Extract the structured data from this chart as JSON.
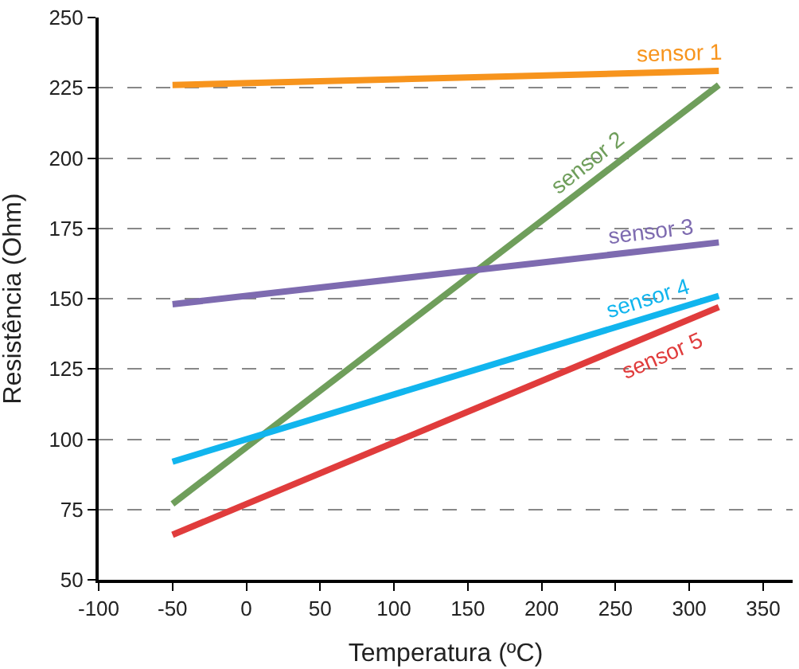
{
  "chart_data": {
    "type": "line",
    "xlabel": "Temperatura (ºC)",
    "ylabel": "Resistência (Ohm)",
    "x": [
      -50,
      320
    ],
    "series": [
      {
        "name": "sensor 1",
        "color": "#f7941d",
        "values": [
          226,
          231
        ]
      },
      {
        "name": "sensor 2",
        "color": "#6f9e5b",
        "values": [
          77,
          226
        ]
      },
      {
        "name": "sensor 3",
        "color": "#7e6bb0",
        "values": [
          148,
          170
        ]
      },
      {
        "name": "sensor 4",
        "color": "#11b5ee",
        "values": [
          92,
          151
        ]
      },
      {
        "name": "sensor 5",
        "color": "#e03c3c",
        "values": [
          66,
          147
        ]
      }
    ],
    "xlim": [
      -100,
      370
    ],
    "xticks": [
      -100,
      -50,
      0,
      50,
      100,
      150,
      200,
      250,
      300,
      350
    ],
    "ylim": [
      50,
      250
    ],
    "yticks": [
      50,
      75,
      100,
      125,
      150,
      175,
      200,
      225,
      250
    ],
    "grid": "y",
    "legend": false,
    "marker": "none",
    "line_style": "solid"
  }
}
